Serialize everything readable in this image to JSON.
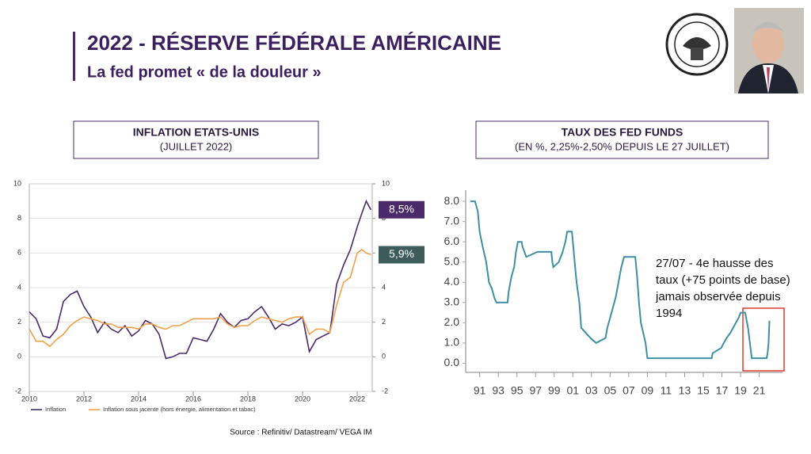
{
  "header": {
    "title": "2022 - RÉSERVE FÉDÉRALE AMÉRICAINE",
    "subtitle": "La fed promet « de la douleur »"
  },
  "source": "Source : Refinitiv/ Datastream/ VEGA IM",
  "chart_data": [
    {
      "type": "line",
      "title": "INFLATION ETATS-UNIS",
      "subtitle": "(JUILLET 2022)",
      "x": [
        2010,
        2010.25,
        2010.5,
        2010.75,
        2011,
        2011.25,
        2011.5,
        2011.75,
        2012,
        2012.25,
        2012.5,
        2012.75,
        2013,
        2013.25,
        2013.5,
        2013.75,
        2014,
        2014.25,
        2014.5,
        2014.75,
        2015,
        2015.25,
        2015.5,
        2015.75,
        2016,
        2016.25,
        2016.5,
        2016.75,
        2017,
        2017.25,
        2017.5,
        2017.75,
        2018,
        2018.25,
        2018.5,
        2018.75,
        2019,
        2019.25,
        2019.5,
        2019.75,
        2020,
        2020.25,
        2020.5,
        2020.75,
        2021,
        2021.25,
        2021.5,
        2021.75,
        2022,
        2022.17,
        2022.33,
        2022.5
      ],
      "series": [
        {
          "name": "Inflation",
          "color": "#4b2a6b",
          "end_label": "8,5%",
          "end_label_color": "#4b2a6b",
          "values": [
            2.6,
            2.2,
            1.2,
            1.1,
            1.6,
            3.2,
            3.6,
            3.8,
            2.9,
            2.3,
            1.4,
            2.0,
            1.6,
            1.4,
            1.8,
            1.2,
            1.5,
            2.1,
            1.9,
            1.3,
            -0.1,
            0.0,
            0.2,
            0.2,
            1.1,
            1.0,
            0.9,
            1.6,
            2.5,
            2.0,
            1.7,
            2.1,
            2.2,
            2.6,
            2.9,
            2.3,
            1.6,
            1.9,
            1.8,
            2.0,
            2.3,
            0.3,
            1.0,
            1.2,
            1.4,
            4.2,
            5.3,
            6.2,
            7.5,
            8.3,
            9.0,
            8.5
          ]
        },
        {
          "name": "Inflation sous jacente (hors énergie, alimentation et tabac)",
          "color": "#f0a04b",
          "end_label": "5,9%",
          "end_label_color": "#3e5b5b",
          "values": [
            1.6,
            0.9,
            0.9,
            0.6,
            1.0,
            1.3,
            1.8,
            2.1,
            2.3,
            2.2,
            2.1,
            1.9,
            1.9,
            1.7,
            1.7,
            1.7,
            1.6,
            1.9,
            1.9,
            1.7,
            1.6,
            1.8,
            1.8,
            2.0,
            2.2,
            2.2,
            2.2,
            2.2,
            2.3,
            1.9,
            1.7,
            1.8,
            1.8,
            2.1,
            2.3,
            2.2,
            2.1,
            2.0,
            2.2,
            2.3,
            2.3,
            1.3,
            1.6,
            1.6,
            1.4,
            3.0,
            4.3,
            4.6,
            6.0,
            6.2,
            6.0,
            5.9
          ]
        }
      ],
      "xlim": [
        2010,
        2022.55
      ],
      "xticks": [
        2010,
        2012,
        2014,
        2016,
        2018,
        2020,
        2022
      ],
      "ylim": [
        -2,
        10
      ],
      "yticks": [
        -2,
        0,
        2,
        4,
        6,
        8,
        10
      ],
      "y2lim": [
        -2,
        10
      ],
      "y2ticks": [
        -2,
        0,
        2,
        4,
        6,
        8,
        10
      ],
      "grid": true,
      "legend": "bottom-left"
    },
    {
      "type": "line",
      "title": "TAUX DES FED FUNDS",
      "subtitle": "(EN %, 2,25%-2,50% DEPUIS LE 27 JUILLET)",
      "x": [
        1990,
        1990.5,
        1990.8,
        1991,
        1991.3,
        1991.7,
        1992,
        1992.3,
        1992.6,
        1992.8,
        1994,
        1994.1,
        1994.4,
        1994.7,
        1994.9,
        1995.1,
        1995.5,
        1995.6,
        1996,
        1997.2,
        1998.7,
        1998.8,
        1998.9,
        1999.5,
        1999.9,
        2000.2,
        2000.4,
        2000.9,
        2001,
        2001.2,
        2001.4,
        2001.7,
        2001.9,
        2002.9,
        2003.5,
        2004.5,
        2004.7,
        2005,
        2005.3,
        2005.6,
        2005.9,
        2006.2,
        2006.5,
        2007.7,
        2007.8,
        2007.9,
        2008.1,
        2008.3,
        2008.8,
        2009,
        2015.9,
        2016,
        2016.9,
        2017.2,
        2017.5,
        2017.9,
        2018.2,
        2018.5,
        2018.8,
        2019,
        2019.5,
        2019.6,
        2019.7,
        2019.8,
        2020.2,
        2021.8,
        2021.9,
        2022,
        2022.1
      ],
      "series": [
        {
          "name": "Fed funds",
          "color": "#3f8fa3",
          "values": [
            8.0,
            8.0,
            7.5,
            6.5,
            5.8,
            5.0,
            4.0,
            3.7,
            3.2,
            3.0,
            3.0,
            3.5,
            4.25,
            4.75,
            5.5,
            6.0,
            6.0,
            5.75,
            5.25,
            5.5,
            5.5,
            5.0,
            4.75,
            5.0,
            5.5,
            6.0,
            6.5,
            6.5,
            6.0,
            5.0,
            4.0,
            3.0,
            1.75,
            1.25,
            1.0,
            1.25,
            1.75,
            2.25,
            2.75,
            3.25,
            4.0,
            4.75,
            5.25,
            5.25,
            4.75,
            4.25,
            3.0,
            2.0,
            1.0,
            0.25,
            0.25,
            0.5,
            0.75,
            1.0,
            1.25,
            1.5,
            1.75,
            2.0,
            2.25,
            2.5,
            2.5,
            2.25,
            2.0,
            1.75,
            0.25,
            0.25,
            0.5,
            1.0,
            2.1
          ]
        }
      ],
      "xlim": [
        1989.5,
        2023.5
      ],
      "xticks": [
        {
          "value": 1991,
          "label": "91"
        },
        {
          "value": 1993,
          "label": "93"
        },
        {
          "value": 1995,
          "label": "95"
        },
        {
          "value": 1997,
          "label": "97"
        },
        {
          "value": 1999,
          "label": "99"
        },
        {
          "value": 2001,
          "label": "01"
        },
        {
          "value": 2003,
          "label": "03"
        },
        {
          "value": 2005,
          "label": "05"
        },
        {
          "value": 2007,
          "label": "07"
        },
        {
          "value": 2009,
          "label": "09"
        },
        {
          "value": 2011,
          "label": "11"
        },
        {
          "value": 2013,
          "label": "13"
        },
        {
          "value": 2015,
          "label": "15"
        },
        {
          "value": 2017,
          "label": "17"
        },
        {
          "value": 2019,
          "label": "19"
        },
        {
          "value": 2021,
          "label": "21"
        }
      ],
      "ylim": [
        -0.45,
        8.55
      ],
      "yticks": [
        {
          "value": 0,
          "label": "0.0"
        },
        {
          "value": 1,
          "label": "1.0"
        },
        {
          "value": 2,
          "label": "2.0"
        },
        {
          "value": 3,
          "label": "3.0"
        },
        {
          "value": 4,
          "label": "4.0"
        },
        {
          "value": 5,
          "label": "5.0"
        },
        {
          "value": 6,
          "label": "6.0"
        },
        {
          "value": 7,
          "label": "7.0"
        },
        {
          "value": 8,
          "label": "8.0"
        }
      ],
      "grid": false,
      "annotation": "27/07 - 4e hausse des taux (+75 points de base) jamais observée depuis 1994"
    }
  ]
}
